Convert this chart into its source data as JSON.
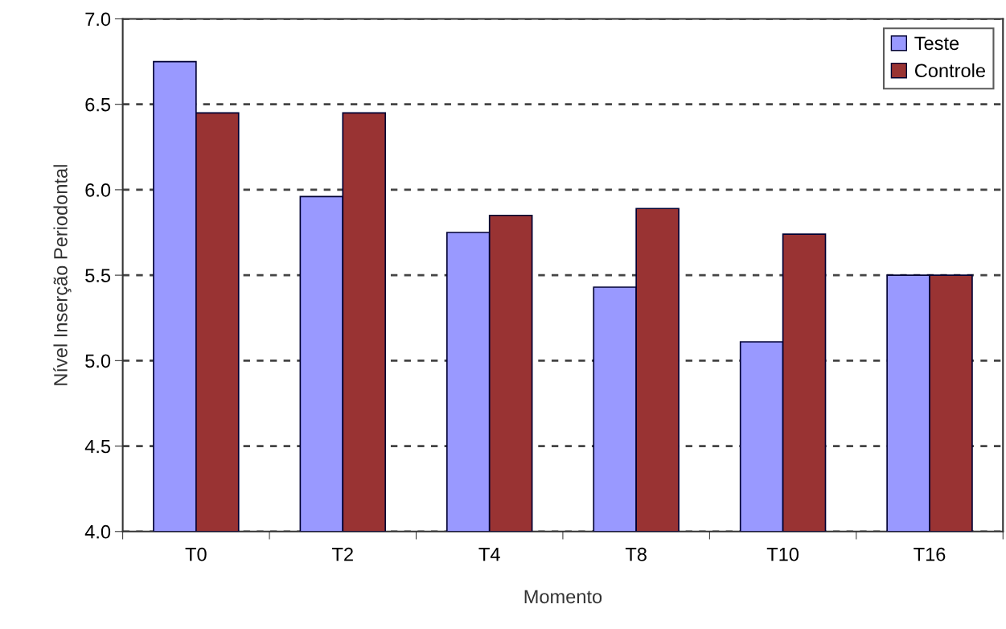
{
  "chart_data": {
    "type": "bar",
    "xlabel": "Momento",
    "ylabel": "Nível Inserção Periodontal",
    "categories": [
      "T0",
      "T2",
      "T4",
      "T8",
      "T10",
      "T16"
    ],
    "series": [
      {
        "name": "Teste",
        "color": "#9999ff",
        "values": [
          6.75,
          5.96,
          5.75,
          5.43,
          5.11,
          5.5
        ]
      },
      {
        "name": "Controle",
        "color": "#993333",
        "values": [
          6.45,
          6.45,
          5.85,
          5.89,
          5.74,
          5.5
        ]
      }
    ],
    "ylim": [
      4.0,
      7.0
    ],
    "yticks": [
      {
        "value": 4.0,
        "label": "4.0"
      },
      {
        "value": 4.5,
        "label": "4.5"
      },
      {
        "value": 5.0,
        "label": "5.0"
      },
      {
        "value": 5.5,
        "label": "5.5"
      },
      {
        "value": 6.0,
        "label": "6.0"
      },
      {
        "value": 6.5,
        "label": "6.5"
      },
      {
        "value": 7.0,
        "label": "7.0"
      }
    ],
    "grid": "y",
    "legend": "top right"
  }
}
